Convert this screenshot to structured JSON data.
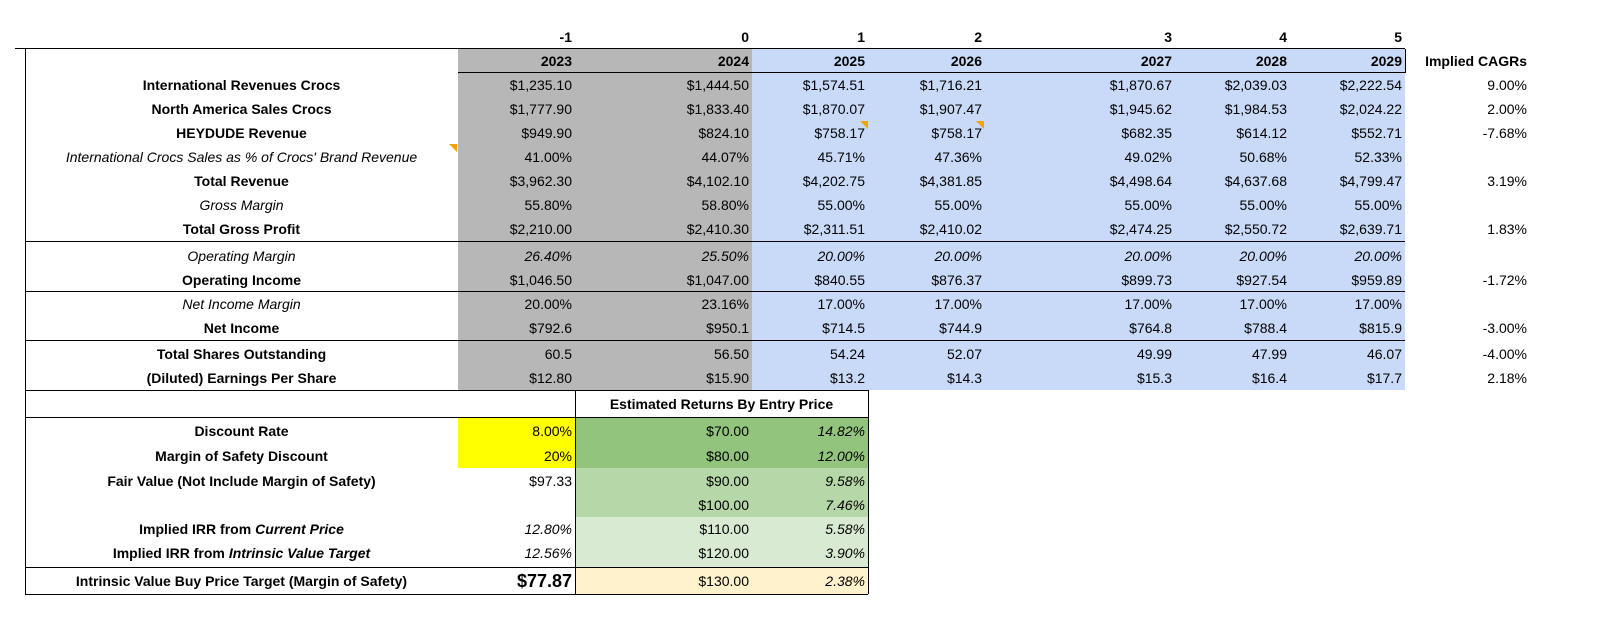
{
  "table": {
    "index_row": [
      "-1",
      "0",
      "1",
      "2",
      "3",
      "4",
      "5"
    ],
    "header": [
      "2023",
      "2024",
      "2025",
      "2026",
      "2027",
      "2028",
      "2029",
      "Implied CAGRs"
    ],
    "rows": [
      {
        "label": "International Revenues Crocs",
        "values": [
          "$1,235.10",
          "$1,444.50",
          "$1,574.51",
          "$1,716.21",
          "$1,870.67",
          "$2,039.03",
          "$2,222.54"
        ],
        "cagr": "9.00%"
      },
      {
        "label": "North America Sales Crocs",
        "values": [
          "$1,777.90",
          "$1,833.40",
          "$1,870.07",
          "$1,907.47",
          "$1,945.62",
          "$1,984.53",
          "$2,024.22"
        ],
        "cagr": "2.00%"
      },
      {
        "label": "HEYDUDE Revenue",
        "values": [
          "$949.90",
          "$824.10",
          "$758.17",
          "$758.17",
          "$682.35",
          "$614.12",
          "$552.71"
        ],
        "cagr": "-7.68%"
      },
      {
        "label": "International Crocs Sales as % of Crocs' Brand Revenue",
        "values": [
          "41.00%",
          "44.07%",
          "45.71%",
          "47.36%",
          "49.02%",
          "50.68%",
          "52.33%"
        ]
      },
      {
        "label": "Total Revenue",
        "values": [
          "$3,962.30",
          "$4,102.10",
          "$4,202.75",
          "$4,381.85",
          "$4,498.64",
          "$4,637.68",
          "$4,799.47"
        ],
        "cagr": "3.19%"
      },
      {
        "label": "Gross Margin",
        "values": [
          "55.80%",
          "58.80%",
          "55.00%",
          "55.00%",
          "55.00%",
          "55.00%",
          "55.00%"
        ]
      },
      {
        "label": "Total Gross Profit",
        "values": [
          "$2,210.00",
          "$2,410.30",
          "$2,311.51",
          "$2,410.02",
          "$2,474.25",
          "$2,550.72",
          "$2,639.71"
        ],
        "cagr": "1.83%"
      },
      {
        "label": "Operating Margin",
        "values": [
          "26.40%",
          "25.50%",
          "20.00%",
          "20.00%",
          "20.00%",
          "20.00%",
          "20.00%"
        ]
      },
      {
        "label": "Operating Income",
        "values": [
          "$1,046.50",
          "$1,047.00",
          "$840.55",
          "$876.37",
          "$899.73",
          "$927.54",
          "$959.89"
        ],
        "cagr": "-1.72%"
      },
      {
        "label": "Net Income Margin",
        "values": [
          "20.00%",
          "23.16%",
          "17.00%",
          "17.00%",
          "17.00%",
          "17.00%",
          "17.00%"
        ]
      },
      {
        "label": "Net Income",
        "values": [
          "$792.6",
          "$950.1",
          "$714.5",
          "$744.9",
          "$764.8",
          "$788.4",
          "$815.9"
        ],
        "cagr": "-3.00%"
      },
      {
        "label": "Total Shares Outstanding",
        "values": [
          "60.5",
          "56.50",
          "54.24",
          "52.07",
          "49.99",
          "47.99",
          "46.07"
        ],
        "cagr": "-4.00%"
      },
      {
        "label": "(Diluted) Earnings Per Share",
        "values": [
          "$12.80",
          "$15.90",
          "$13.2",
          "$14.3",
          "$15.3",
          "$16.4",
          "$17.7"
        ],
        "cagr": "2.18%"
      }
    ]
  },
  "valuation": {
    "returns_title": "Estimated Returns By Entry Price",
    "rows": [
      {
        "label": "Discount Rate",
        "value": "8.00%",
        "price": "$70.00",
        "return": "14.82%"
      },
      {
        "label": "Margin of Safety Discount",
        "value": "20%",
        "price": "$80.00",
        "return": "12.00%"
      },
      {
        "label": "Fair Value (Not Include Margin of Safety)",
        "value": "$97.33",
        "price": "$90.00",
        "return": "9.58%"
      },
      {
        "price": "$100.00",
        "return": "7.46%"
      },
      {
        "label": "Implied IRR from",
        "label_em": "Current Price",
        "value": "12.80%",
        "price": "$110.00",
        "return": "5.58%"
      },
      {
        "label": "Implied IRR from",
        "label_em": "Intrinsic Value Target",
        "value": "12.56%",
        "price": "$120.00",
        "return": "3.90%"
      },
      {
        "label": "Intrinsic Value Buy Price Target (Margin of Safety)",
        "value": "$77.87",
        "price": "$130.00",
        "return": "2.38%"
      }
    ]
  }
}
